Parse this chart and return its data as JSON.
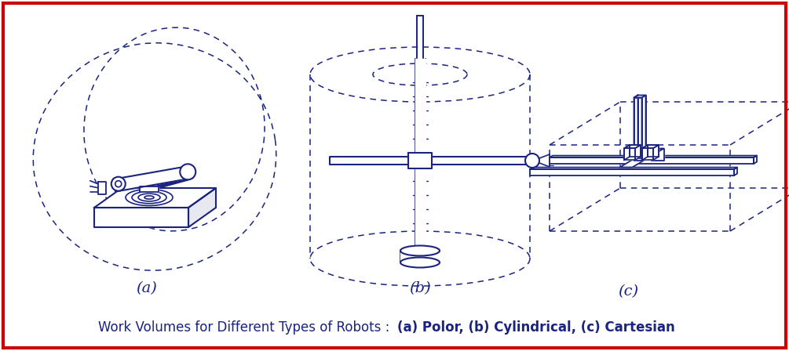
{
  "title_plain": "Work Volumes for Different Types of Robots : ",
  "title_bold": "(a) Polor, (b) Cylindrical, (c) Cartesian",
  "label_a": "(a)",
  "label_b": "(b)",
  "label_c": "(c)",
  "border_color": "#cc0000",
  "text_color": "#1a237e",
  "line_color": "#1a237e",
  "bg_color": "#ffffff",
  "fig_width": 10.05,
  "fig_height": 4.48,
  "dpi": 100
}
